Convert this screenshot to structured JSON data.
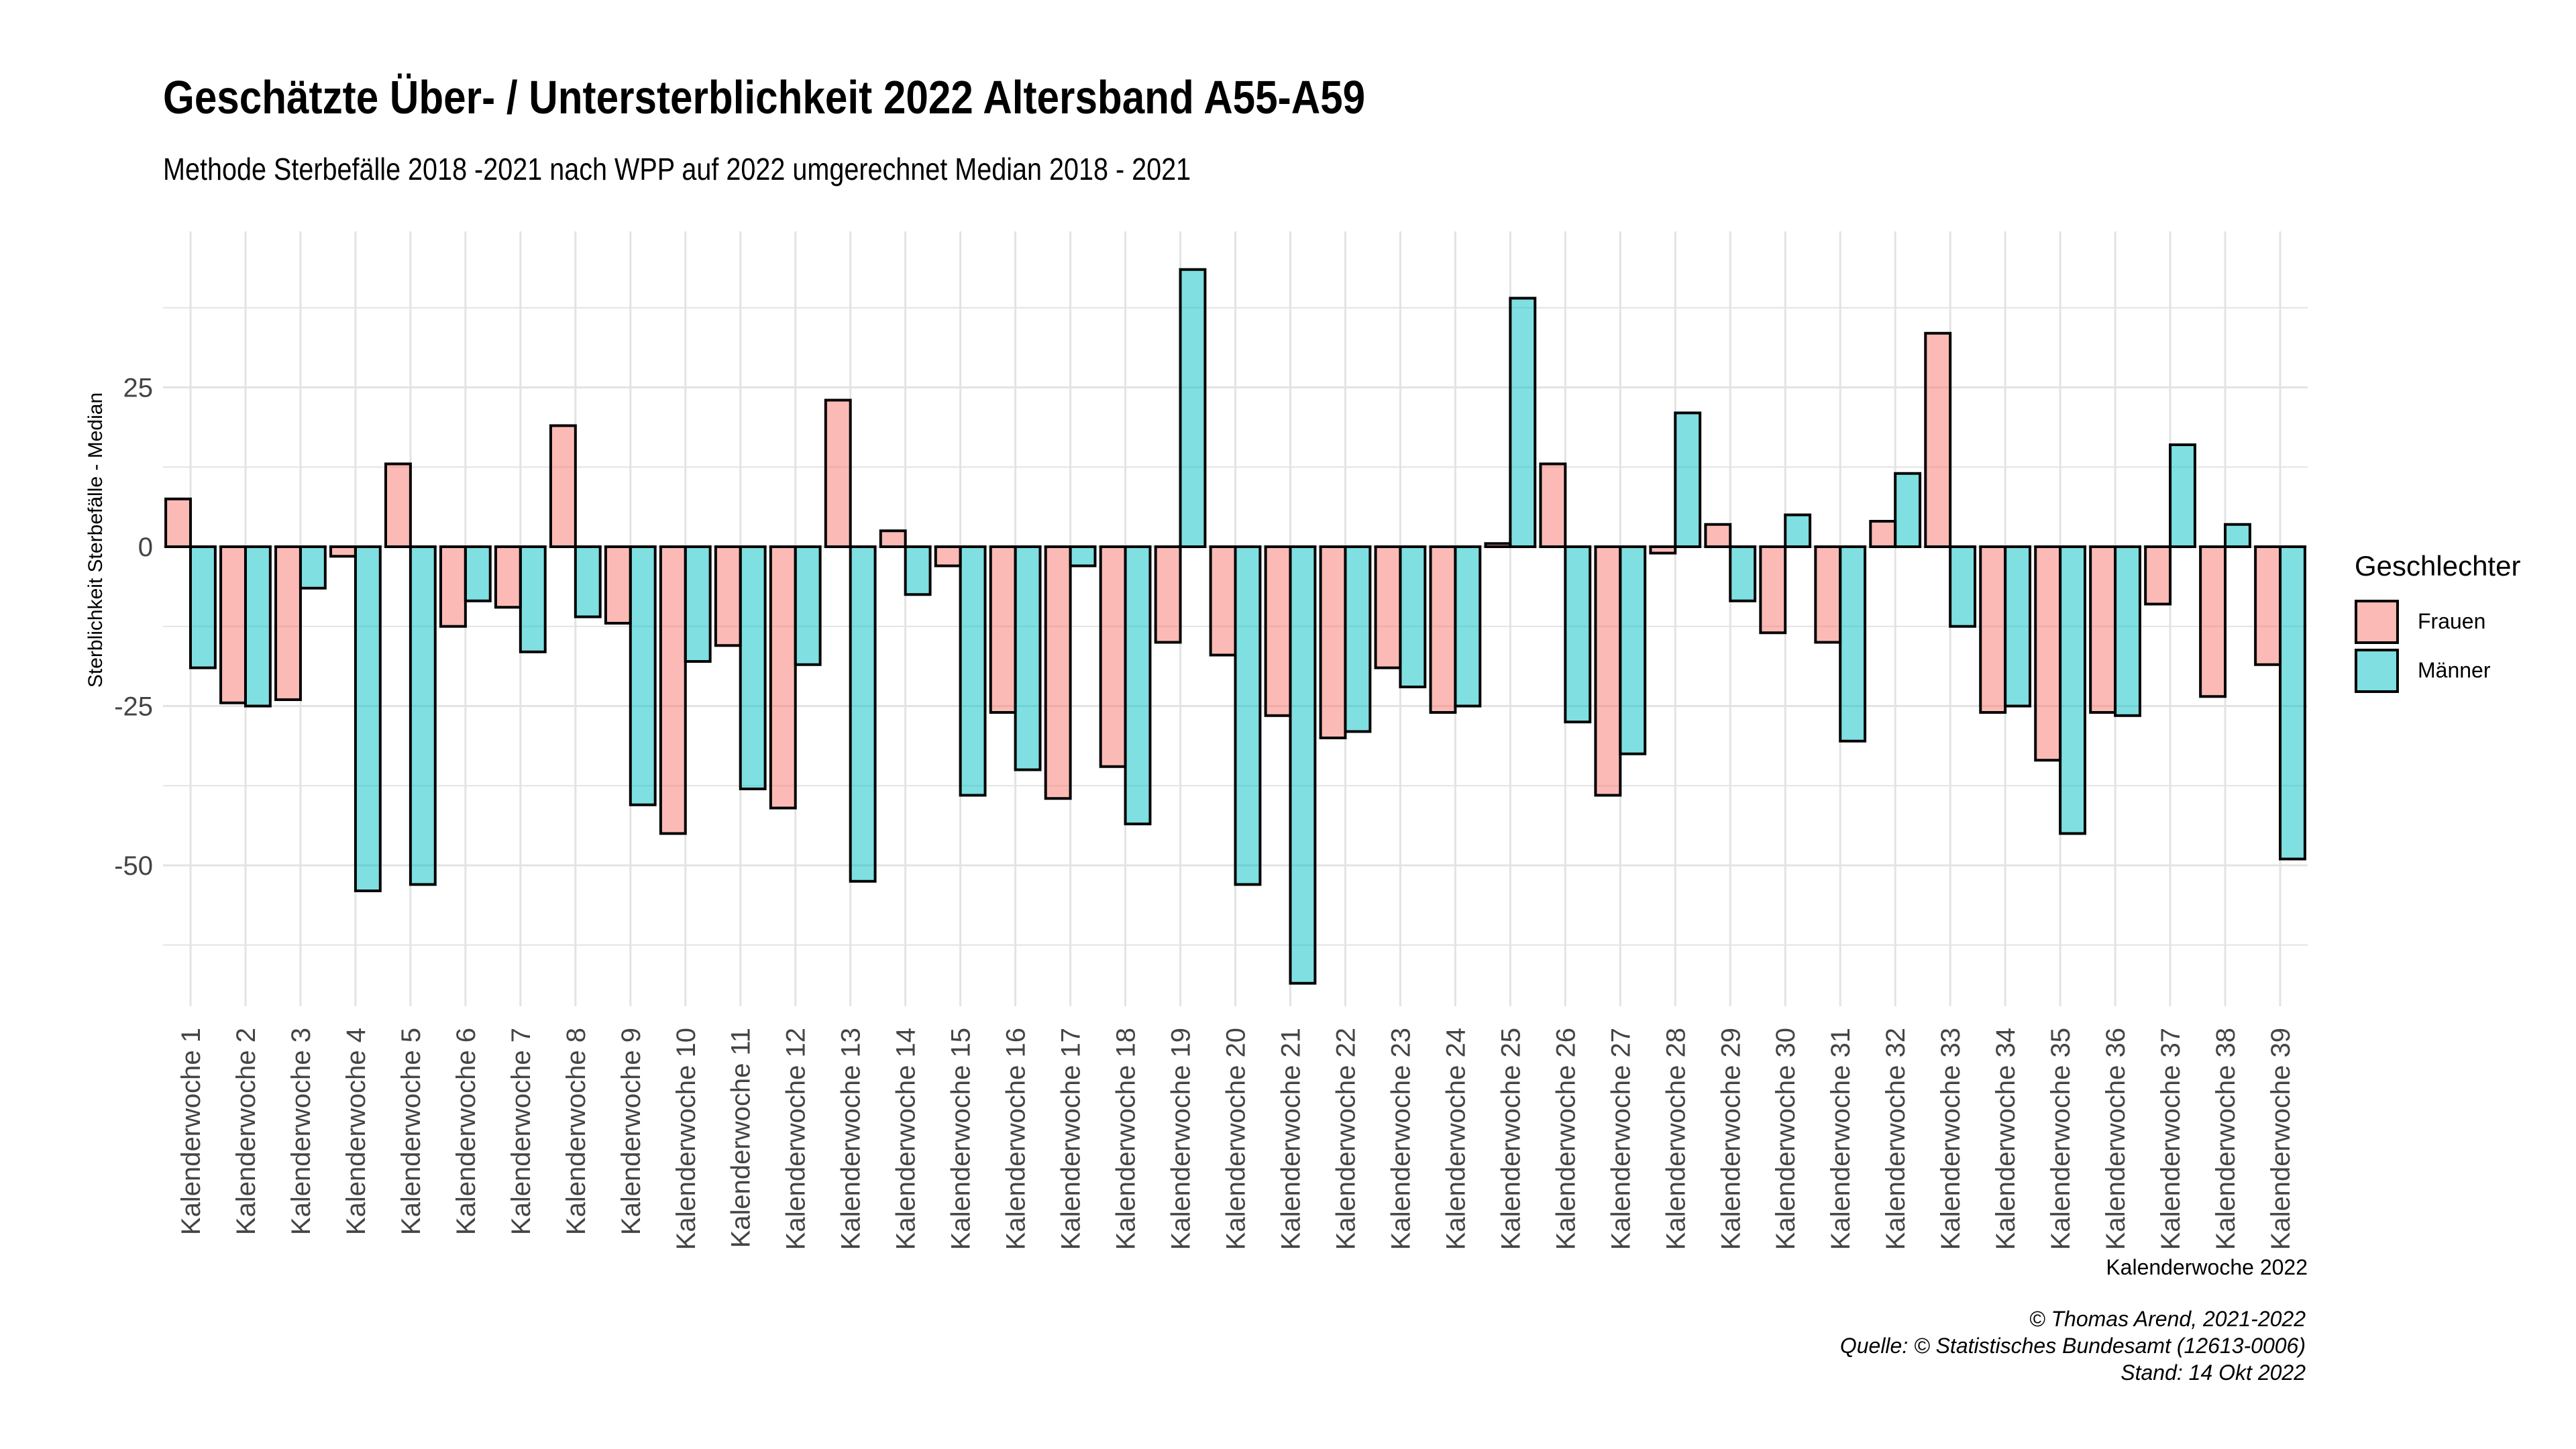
{
  "title": "Geschätzte Über- / Untersterblichkeit 2022 Altersband A55-A59",
  "subtitle": "Methode Sterbefälle 2018 -2021 nach WPP auf 2022 umgerechnet Median 2018 - 2021",
  "captions": {
    "author": "© Thomas Arend, 2021-2022",
    "source": "Quelle: © Statistisches Bundesamt (12613-0006)",
    "date": "Stand: 14 Okt 2022"
  },
  "legend": {
    "title": "Geschlechter",
    "items": [
      {
        "label": "Frauen",
        "color": "#F8766D"
      },
      {
        "label": "Männer",
        "color": "#00BFC4"
      }
    ]
  },
  "chart_data": {
    "type": "bar",
    "xlabel": "Kalenderwoche 2022",
    "ylabel": "Sterblichkeit Sterbefälle - Median",
    "ylim": [
      -69,
      49
    ],
    "yticks": [
      -50,
      -25,
      0,
      25
    ],
    "grid": true,
    "legend_position": "right",
    "categories": [
      "Kalenderwoche 1",
      "Kalenderwoche 2",
      "Kalenderwoche 3",
      "Kalenderwoche 4",
      "Kalenderwoche 5",
      "Kalenderwoche 6",
      "Kalenderwoche 7",
      "Kalenderwoche 8",
      "Kalenderwoche 9",
      "Kalenderwoche 10",
      "Kalenderwoche 11",
      "Kalenderwoche 12",
      "Kalenderwoche 13",
      "Kalenderwoche 14",
      "Kalenderwoche 15",
      "Kalenderwoche 16",
      "Kalenderwoche 17",
      "Kalenderwoche 18",
      "Kalenderwoche 19",
      "Kalenderwoche 20",
      "Kalenderwoche 21",
      "Kalenderwoche 22",
      "Kalenderwoche 23",
      "Kalenderwoche 24",
      "Kalenderwoche 25",
      "Kalenderwoche 26",
      "Kalenderwoche 27",
      "Kalenderwoche 28",
      "Kalenderwoche 29",
      "Kalenderwoche 30",
      "Kalenderwoche 31",
      "Kalenderwoche 32",
      "Kalenderwoche 33",
      "Kalenderwoche 34",
      "Kalenderwoche 35",
      "Kalenderwoche 36",
      "Kalenderwoche 37",
      "Kalenderwoche 38",
      "Kalenderwoche 39"
    ],
    "series": [
      {
        "name": "Frauen",
        "color": "#F8766D",
        "values": [
          7.5,
          -24.5,
          -24,
          -1.5,
          13,
          -12.5,
          -9.5,
          19,
          -12,
          -45,
          -15.5,
          -41,
          23,
          2.5,
          -3,
          -26,
          -39.5,
          -34.5,
          -15,
          -17,
          -26.5,
          -30,
          -19,
          -26,
          0.5,
          13,
          -39,
          -1,
          3.5,
          -13.5,
          -15,
          4,
          33.5,
          -26,
          -33.5,
          -26,
          -9,
          -23.5,
          -18.5
        ]
      },
      {
        "name": "Männer",
        "color": "#00BFC4",
        "values": [
          -19,
          -25,
          -6.5,
          -54,
          -53,
          -8.5,
          -16.5,
          -11,
          -40.5,
          -18,
          -38,
          -18.5,
          -52.5,
          -7.5,
          -39,
          -35,
          -3,
          -43.5,
          43.5,
          -53,
          -68.5,
          -29,
          -22,
          -25,
          39,
          -27.5,
          -32.5,
          21,
          -8.5,
          5,
          -30.5,
          11.5,
          -12.5,
          -25,
          -45,
          -26.5,
          16,
          3.5,
          -49
        ]
      }
    ]
  }
}
